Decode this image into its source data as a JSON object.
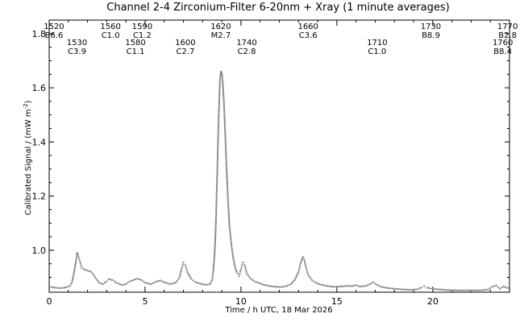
{
  "chart_data": {
    "type": "scatter",
    "title": "Channel 2-4   Zirconium-Filter   6-20nm + Xray   (1 minute averages)",
    "xlabel": "Time / h UTC, 18 Mar 2026",
    "ylabel": "Calibrated Signal / (mW m",
    "ylabel_sup": "-2",
    "ylabel_end": ")",
    "xlim": [
      0,
      24
    ],
    "ylim": [
      0.845,
      1.85
    ],
    "xticks": [
      0,
      5,
      10,
      15,
      20
    ],
    "yticks": [
      1.0,
      1.2,
      1.4,
      1.6,
      1.8
    ],
    "xtick_labels": [
      "0",
      "5",
      "10",
      "15",
      "20"
    ],
    "ytick_labels": [
      "1.0",
      "1.2",
      "1.4",
      "1.6",
      "1.8"
    ],
    "grid": false,
    "marker_color": "#808080",
    "series": [
      {
        "points": [
          [
            0.0,
            0.865
          ],
          [
            0.3,
            0.862
          ],
          [
            0.6,
            0.86
          ],
          [
            0.9,
            0.863
          ],
          [
            1.1,
            0.87
          ],
          [
            1.2,
            0.885
          ],
          [
            1.3,
            0.92
          ],
          [
            1.4,
            0.96
          ],
          [
            1.45,
            0.99
          ],
          [
            1.5,
            0.985
          ],
          [
            1.6,
            0.96
          ],
          [
            1.7,
            0.935
          ],
          [
            1.8,
            0.93
          ],
          [
            2.0,
            0.925
          ],
          [
            2.2,
            0.92
          ],
          [
            2.4,
            0.9
          ],
          [
            2.6,
            0.88
          ],
          [
            2.8,
            0.875
          ],
          [
            3.0,
            0.885
          ],
          [
            3.1,
            0.893
          ],
          [
            3.3,
            0.89
          ],
          [
            3.5,
            0.88
          ],
          [
            3.8,
            0.872
          ],
          [
            4.0,
            0.875
          ],
          [
            4.2,
            0.885
          ],
          [
            4.4,
            0.89
          ],
          [
            4.6,
            0.895
          ],
          [
            4.8,
            0.89
          ],
          [
            5.0,
            0.88
          ],
          [
            5.3,
            0.875
          ],
          [
            5.6,
            0.885
          ],
          [
            5.8,
            0.888
          ],
          [
            6.0,
            0.882
          ],
          [
            6.3,
            0.875
          ],
          [
            6.6,
            0.88
          ],
          [
            6.8,
            0.9
          ],
          [
            6.9,
            0.93
          ],
          [
            7.0,
            0.955
          ],
          [
            7.1,
            0.945
          ],
          [
            7.2,
            0.92
          ],
          [
            7.4,
            0.895
          ],
          [
            7.6,
            0.883
          ],
          [
            7.8,
            0.878
          ],
          [
            8.0,
            0.875
          ],
          [
            8.2,
            0.872
          ],
          [
            8.4,
            0.876
          ],
          [
            8.5,
            0.89
          ],
          [
            8.55,
            0.92
          ],
          [
            8.6,
            0.96
          ],
          [
            8.65,
            1.02
          ],
          [
            8.7,
            1.12
          ],
          [
            8.75,
            1.25
          ],
          [
            8.8,
            1.4
          ],
          [
            8.85,
            1.52
          ],
          [
            8.9,
            1.62
          ],
          [
            8.95,
            1.66
          ],
          [
            9.0,
            1.655
          ],
          [
            9.05,
            1.62
          ],
          [
            9.1,
            1.56
          ],
          [
            9.15,
            1.48
          ],
          [
            9.2,
            1.39
          ],
          [
            9.25,
            1.3
          ],
          [
            9.3,
            1.22
          ],
          [
            9.35,
            1.15
          ],
          [
            9.4,
            1.09
          ],
          [
            9.5,
            1.02
          ],
          [
            9.6,
            0.97
          ],
          [
            9.7,
            0.935
          ],
          [
            9.8,
            0.915
          ],
          [
            9.9,
            0.905
          ],
          [
            10.0,
            0.93
          ],
          [
            10.1,
            0.955
          ],
          [
            10.2,
            0.945
          ],
          [
            10.3,
            0.915
          ],
          [
            10.5,
            0.895
          ],
          [
            10.7,
            0.885
          ],
          [
            10.9,
            0.88
          ],
          [
            11.2,
            0.872
          ],
          [
            11.5,
            0.868
          ],
          [
            11.8,
            0.865
          ],
          [
            12.1,
            0.864
          ],
          [
            12.4,
            0.868
          ],
          [
            12.6,
            0.875
          ],
          [
            12.8,
            0.89
          ],
          [
            13.0,
            0.92
          ],
          [
            13.1,
            0.95
          ],
          [
            13.2,
            0.97
          ],
          [
            13.25,
            0.975
          ],
          [
            13.3,
            0.965
          ],
          [
            13.4,
            0.935
          ],
          [
            13.5,
            0.91
          ],
          [
            13.7,
            0.89
          ],
          [
            13.9,
            0.88
          ],
          [
            14.2,
            0.872
          ],
          [
            14.5,
            0.868
          ],
          [
            14.8,
            0.865
          ],
          [
            15.2,
            0.866
          ],
          [
            15.5,
            0.868
          ],
          [
            15.8,
            0.868
          ],
          [
            16.0,
            0.871
          ],
          [
            16.2,
            0.866
          ],
          [
            16.5,
            0.868
          ],
          [
            16.7,
            0.874
          ],
          [
            16.9,
            0.882
          ],
          [
            17.0,
            0.876
          ],
          [
            17.3,
            0.865
          ],
          [
            17.7,
            0.86
          ],
          [
            18.1,
            0.857
          ],
          [
            18.5,
            0.855
          ],
          [
            18.9,
            0.854
          ],
          [
            19.2,
            0.856
          ],
          [
            19.4,
            0.862
          ],
          [
            19.55,
            0.867
          ],
          [
            19.7,
            0.862
          ],
          [
            20.0,
            0.857
          ],
          [
            20.4,
            0.855
          ],
          [
            20.8,
            0.853
          ],
          [
            21.2,
            0.852
          ],
          [
            21.6,
            0.852
          ],
          [
            22.0,
            0.852
          ],
          [
            22.5,
            0.852
          ],
          [
            22.9,
            0.855
          ],
          [
            23.1,
            0.865
          ],
          [
            23.3,
            0.87
          ],
          [
            23.5,
            0.858
          ],
          [
            23.7,
            0.866
          ],
          [
            24.0,
            0.858
          ]
        ]
      }
    ],
    "annotations": [
      {
        "time": "1520",
        "class": "B6.6",
        "x": 0.25,
        "row": 0
      },
      {
        "time": "1530",
        "class": "C3.9",
        "x": 1.45,
        "row": 1
      },
      {
        "time": "1560",
        "class": "C1.0",
        "x": 3.2,
        "row": 0
      },
      {
        "time": "1580",
        "class": "C1.1",
        "x": 4.5,
        "row": 1
      },
      {
        "time": "1590",
        "class": "C1.2",
        "x": 4.85,
        "row": 0
      },
      {
        "time": "1600",
        "class": "C2.7",
        "x": 7.1,
        "row": 1
      },
      {
        "time": "1620",
        "class": "M2.7",
        "x": 8.95,
        "row": 0
      },
      {
        "time": "1740",
        "class": "C2.8",
        "x": 10.3,
        "row": 1
      },
      {
        "time": "1660",
        "class": "C3.6",
        "x": 13.5,
        "row": 0
      },
      {
        "time": "1710",
        "class": "C1.0",
        "x": 17.1,
        "row": 1
      },
      {
        "time": "1730",
        "class": "B8.9",
        "x": 19.9,
        "row": 0
      },
      {
        "time": "1760",
        "class": "B8.4",
        "x": 23.65,
        "row": 1
      },
      {
        "time": "1770",
        "class": "B2.8",
        "x": 23.9,
        "row": 0
      }
    ]
  }
}
